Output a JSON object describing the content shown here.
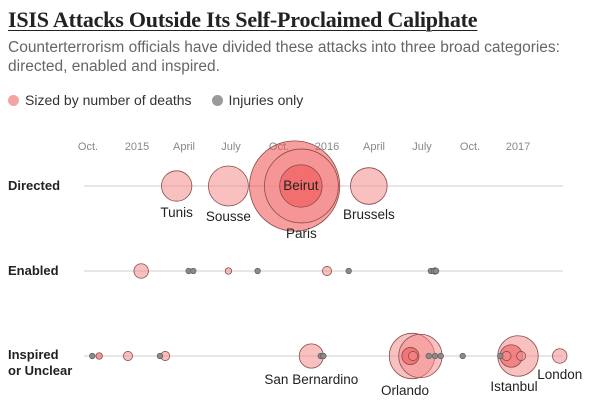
{
  "title": "ISIS Attacks Outside Its Self-Proclaimed Caliphate",
  "subtitle": "Counterterrorism officials have divided these attacks into three broad categories: directed, enabled and inspired.",
  "legend": {
    "sized_label": "Sized by number of deaths",
    "injuries_label": "Injuries only",
    "sized_color": "#f4a3a3",
    "injuries_color": "#9a9a9a"
  },
  "chart_data": {
    "type": "scatter",
    "x_axis": {
      "ticks": [
        {
          "date": "2014-10-01",
          "label": "Oct."
        },
        {
          "date": "2015-01-01",
          "label": "2015"
        },
        {
          "date": "2015-04-01",
          "label": "April"
        },
        {
          "date": "2015-07-01",
          "label": "July"
        },
        {
          "date": "2015-10-01",
          "label": "Oct."
        },
        {
          "date": "2016-01-01",
          "label": "2016"
        },
        {
          "date": "2016-04-01",
          "label": "April"
        },
        {
          "date": "2016-07-01",
          "label": "July"
        },
        {
          "date": "2016-10-01",
          "label": "Oct."
        },
        {
          "date": "2017-01-01",
          "label": "2017"
        }
      ],
      "range": [
        "2014-10-01",
        "2017-04-15"
      ]
    },
    "size_encoding": "number of deaths",
    "rows": [
      {
        "label_lines": [
          "Directed"
        ],
        "events": [
          {
            "date": "2015-03-18",
            "deaths": 22,
            "label": "Tunis"
          },
          {
            "date": "2015-06-26",
            "deaths": 38,
            "label": "Sousse"
          },
          {
            "date": "2015-10-31",
            "deaths": 224,
            "label": "",
            "emphasis": true
          },
          {
            "date": "2015-11-13",
            "deaths": 130,
            "label": "Paris"
          },
          {
            "date": "2015-11-12",
            "deaths": 43,
            "label": "Beirut",
            "emphasis": true
          },
          {
            "date": "2016-03-22",
            "deaths": 32,
            "label": "Brussels"
          }
        ]
      },
      {
        "label_lines": [
          "Enabled"
        ],
        "events": [
          {
            "date": "2015-01-09",
            "deaths": 5,
            "label": ""
          },
          {
            "date": "2015-04-10",
            "deaths": 0,
            "label": ""
          },
          {
            "date": "2015-04-19",
            "deaths": 0,
            "label": ""
          },
          {
            "date": "2015-06-26",
            "deaths": 1,
            "label": ""
          },
          {
            "date": "2015-08-21",
            "deaths": 0,
            "label": ""
          },
          {
            "date": "2016-01-01",
            "deaths": 2,
            "label": ""
          },
          {
            "date": "2016-02-12",
            "deaths": 0,
            "label": ""
          },
          {
            "date": "2016-07-18",
            "deaths": 0,
            "label": ""
          },
          {
            "date": "2016-07-24",
            "deaths": 0,
            "label": ""
          },
          {
            "date": "2016-07-26",
            "deaths": 1,
            "label": ""
          },
          {
            "date": "2016-07-28",
            "deaths": 0,
            "label": ""
          }
        ]
      },
      {
        "label_lines": [
          "Inspired",
          "or Unclear"
        ],
        "events": [
          {
            "date": "2014-10-09",
            "deaths": 0,
            "label": ""
          },
          {
            "date": "2014-10-22",
            "deaths": 1,
            "label": "",
            "emphasis": true
          },
          {
            "date": "2014-12-15",
            "deaths": 2,
            "label": ""
          },
          {
            "date": "2015-02-14",
            "deaths": 0,
            "label": ""
          },
          {
            "date": "2015-02-24",
            "deaths": 2,
            "label": ""
          },
          {
            "date": "2015-12-02",
            "deaths": 14,
            "label": "San Bernardino"
          },
          {
            "date": "2015-12-20",
            "deaths": 0,
            "label": ""
          },
          {
            "date": "2015-12-25",
            "deaths": 0,
            "label": ""
          },
          {
            "date": "2016-06-12",
            "deaths": 49,
            "label": "Orlando"
          },
          {
            "date": "2016-06-28",
            "deaths": 45,
            "label": ""
          },
          {
            "date": "2016-06-14",
            "deaths": 2,
            "label": ""
          },
          {
            "date": "2016-06-09",
            "deaths": 7,
            "label": "",
            "emphasis": true
          },
          {
            "date": "2016-07-14",
            "deaths": 0,
            "label": ""
          },
          {
            "date": "2016-07-26",
            "deaths": 0,
            "label": ""
          },
          {
            "date": "2016-08-06",
            "deaths": 0,
            "label": ""
          },
          {
            "date": "2016-09-17",
            "deaths": 0,
            "label": ""
          },
          {
            "date": "2016-11-28",
            "deaths": 0,
            "label": ""
          },
          {
            "date": "2017-01-01",
            "deaths": 39,
            "label": "Istanbul"
          },
          {
            "date": "2016-12-19",
            "deaths": 12,
            "label": "",
            "emphasis": true
          },
          {
            "date": "2016-12-10",
            "deaths": 2,
            "label": ""
          },
          {
            "date": "2017-01-07",
            "deaths": 2,
            "label": ""
          },
          {
            "date": "2017-03-22",
            "deaths": 5,
            "label": "London"
          }
        ]
      }
    ]
  }
}
